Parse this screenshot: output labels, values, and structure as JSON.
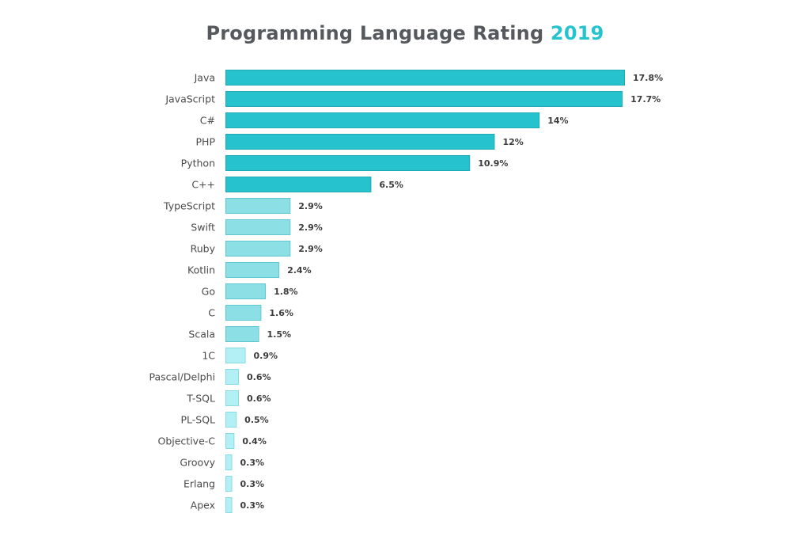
{
  "chart_data": {
    "type": "bar",
    "orientation": "horizontal",
    "title_main": "Programming Language Rating",
    "title_year": "2019",
    "categories": [
      "Java",
      "JavaScript",
      "C#",
      "PHP",
      "Python",
      "C++",
      "TypeScript",
      "Swift",
      "Ruby",
      "Kotlin",
      "Go",
      "C",
      "Scala",
      "1C",
      "Pascal/Delphi",
      "T-SQL",
      "PL-SQL",
      "Objective-C",
      "Groovy",
      "Erlang",
      "Apex"
    ],
    "values": [
      17.8,
      17.7,
      14,
      12,
      10.9,
      6.5,
      2.9,
      2.9,
      2.9,
      2.4,
      1.8,
      1.6,
      1.5,
      0.9,
      0.6,
      0.6,
      0.5,
      0.4,
      0.3,
      0.3,
      0.3
    ],
    "value_labels": [
      "17.8%",
      "17.7%",
      "14%",
      "12%",
      "10.9%",
      "6.5%",
      "2.9%",
      "2.9%",
      "2.9%",
      "2.4%",
      "1.8%",
      "1.6%",
      "1.5%",
      "0.9%",
      "0.6%",
      "0.6%",
      "0.5%",
      "0.4%",
      "0.3%",
      "0.3%",
      "0.3%"
    ],
    "tiers": [
      "top",
      "top",
      "top",
      "top",
      "top",
      "top",
      "mid",
      "mid",
      "mid",
      "mid",
      "mid",
      "mid",
      "mid",
      "low",
      "low",
      "low",
      "low",
      "low",
      "low",
      "low",
      "low"
    ],
    "xlim": [
      0,
      17.8
    ],
    "grid": false,
    "legend": "none"
  },
  "colors": {
    "title": "#55585c",
    "title_accent": "#26c3cf",
    "top": "#26c3cf",
    "top_stroke": "#1eaab4",
    "mid": "#8ddfe6",
    "mid_stroke": "#5fc7d1",
    "low": "#b3f0f6",
    "low_stroke": "#86dbe4",
    "category_text": "#4a4a4a",
    "value_text": "#3c3c3c"
  }
}
